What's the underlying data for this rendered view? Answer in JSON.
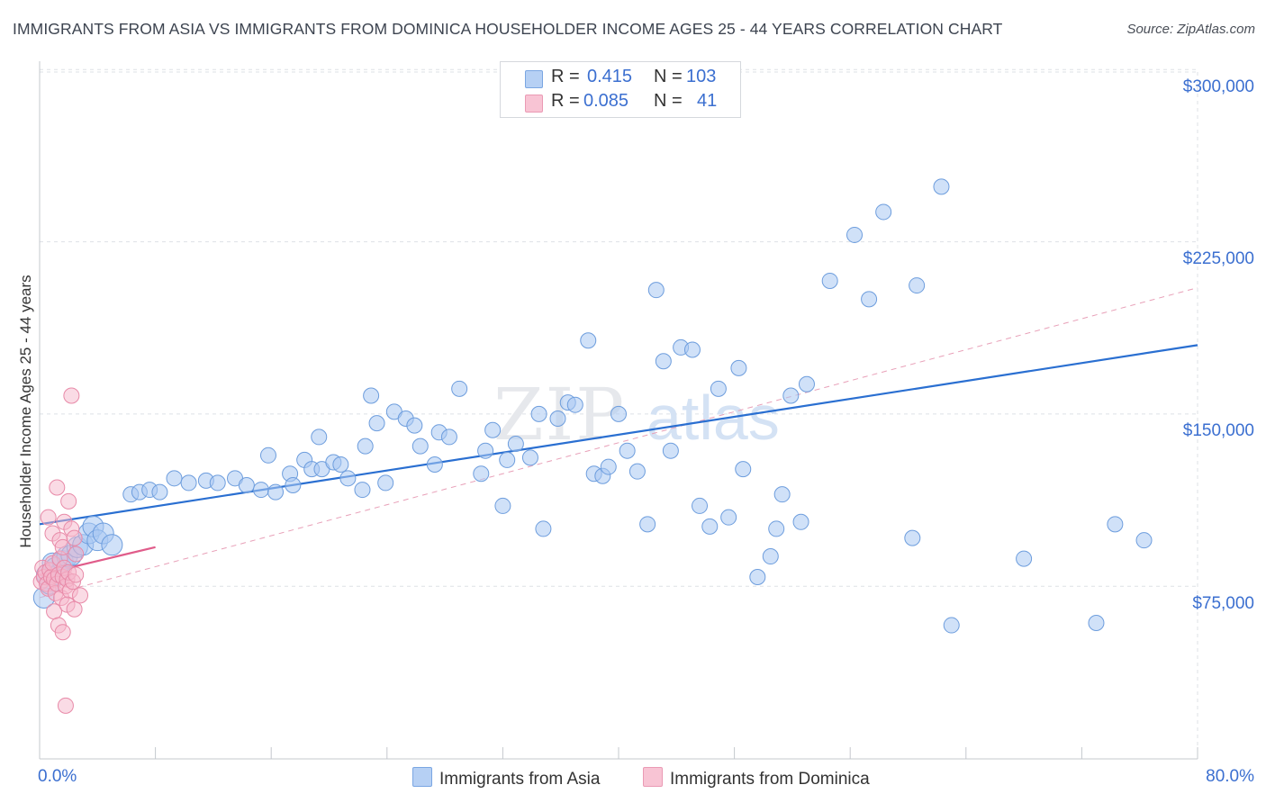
{
  "title": "IMMIGRANTS FROM ASIA VS IMMIGRANTS FROM DOMINICA HOUSEHOLDER INCOME AGES 25 - 44 YEARS CORRELATION CHART",
  "source": "Source: ZipAtlas.com",
  "watermark": {
    "zip": "ZIP",
    "atlas": "atlas"
  },
  "legend": {
    "rows": [
      {
        "r_label": "R =",
        "r_value": "0.415",
        "n_label": "N =",
        "n_value": "103"
      },
      {
        "r_label": "R =",
        "r_value": "0.085",
        "n_label": "N =",
        "n_value": "41"
      }
    ]
  },
  "colors": {
    "asia_fill": "#a9c8f2",
    "asia_stroke": "#6d9ddd",
    "asia_line": "#2a6fd1",
    "dominica_fill": "#f6b8cb",
    "dominica_stroke": "#e88aa8",
    "dominica_line": "#e05c8a",
    "grid": "#dde1e6",
    "axis_text": "#3b6fd0"
  },
  "chart_data": {
    "type": "scatter",
    "title": "IMMIGRANTS FROM ASIA VS IMMIGRANTS FROM DOMINICA HOUSEHOLDER INCOME AGES 25 - 44 YEARS CORRELATION CHART",
    "xlabel": "",
    "ylabel": "Householder Income Ages 25 - 44 years",
    "xlim": [
      0,
      80
    ],
    "ylim": [
      0,
      310000
    ],
    "x_tick_labels": [
      "0.0%",
      "80.0%"
    ],
    "y_ticks": [
      75000,
      150000,
      225000,
      300000
    ],
    "y_tick_labels": [
      "$75,000",
      "$150,000",
      "$225,000",
      "$300,000"
    ],
    "grid": true,
    "series": [
      {
        "name": "Immigrants from Asia",
        "R": 0.415,
        "N": 103,
        "trend": {
          "x": [
            0,
            80
          ],
          "y": [
            102000,
            180000
          ],
          "style": "solid"
        },
        "points": [
          {
            "x": 0.3,
            "y": 70000
          },
          {
            "x": 0.5,
            "y": 80000
          },
          {
            "x": 0.7,
            "y": 76000
          },
          {
            "x": 0.9,
            "y": 85000
          },
          {
            "x": 1.1,
            "y": 83000
          },
          {
            "x": 1.3,
            "y": 80000
          },
          {
            "x": 1.6,
            "y": 86000
          },
          {
            "x": 1.9,
            "y": 88000
          },
          {
            "x": 2.2,
            "y": 88500
          },
          {
            "x": 2.6,
            "y": 92000
          },
          {
            "x": 3.0,
            "y": 93000
          },
          {
            "x": 3.4,
            "y": 98000
          },
          {
            "x": 3.7,
            "y": 101000
          },
          {
            "x": 4.0,
            "y": 95000
          },
          {
            "x": 4.4,
            "y": 98000
          },
          {
            "x": 5.0,
            "y": 93000
          },
          {
            "x": 6.3,
            "y": 115000
          },
          {
            "x": 6.9,
            "y": 116000
          },
          {
            "x": 7.6,
            "y": 117000
          },
          {
            "x": 8.3,
            "y": 116000
          },
          {
            "x": 9.3,
            "y": 122000
          },
          {
            "x": 10.3,
            "y": 120000
          },
          {
            "x": 11.5,
            "y": 121000
          },
          {
            "x": 12.3,
            "y": 120000
          },
          {
            "x": 13.5,
            "y": 122000
          },
          {
            "x": 14.3,
            "y": 119000
          },
          {
            "x": 15.3,
            "y": 117000
          },
          {
            "x": 15.8,
            "y": 132000
          },
          {
            "x": 16.3,
            "y": 116000
          },
          {
            "x": 17.3,
            "y": 124000
          },
          {
            "x": 17.5,
            "y": 119000
          },
          {
            "x": 18.3,
            "y": 130000
          },
          {
            "x": 18.8,
            "y": 126000
          },
          {
            "x": 19.3,
            "y": 140000
          },
          {
            "x": 19.5,
            "y": 126000
          },
          {
            "x": 20.3,
            "y": 129000
          },
          {
            "x": 20.8,
            "y": 128000
          },
          {
            "x": 21.3,
            "y": 122000
          },
          {
            "x": 22.3,
            "y": 117000
          },
          {
            "x": 22.5,
            "y": 136000
          },
          {
            "x": 22.9,
            "y": 158000
          },
          {
            "x": 23.3,
            "y": 146000
          },
          {
            "x": 23.9,
            "y": 120000
          },
          {
            "x": 24.5,
            "y": 151000
          },
          {
            "x": 25.3,
            "y": 148000
          },
          {
            "x": 25.9,
            "y": 145000
          },
          {
            "x": 26.3,
            "y": 136000
          },
          {
            "x": 27.3,
            "y": 128000
          },
          {
            "x": 27.6,
            "y": 142000
          },
          {
            "x": 28.3,
            "y": 140000
          },
          {
            "x": 29.0,
            "y": 161000
          },
          {
            "x": 30.5,
            "y": 124000
          },
          {
            "x": 30.8,
            "y": 134000
          },
          {
            "x": 31.3,
            "y": 143000
          },
          {
            "x": 32.0,
            "y": 110000
          },
          {
            "x": 32.3,
            "y": 130000
          },
          {
            "x": 32.9,
            "y": 137000
          },
          {
            "x": 33.9,
            "y": 131000
          },
          {
            "x": 34.5,
            "y": 150000
          },
          {
            "x": 34.8,
            "y": 100000
          },
          {
            "x": 35.8,
            "y": 148000
          },
          {
            "x": 36.5,
            "y": 155000
          },
          {
            "x": 37.0,
            "y": 154000
          },
          {
            "x": 37.9,
            "y": 182000
          },
          {
            "x": 38.3,
            "y": 124000
          },
          {
            "x": 38.9,
            "y": 123000
          },
          {
            "x": 39.3,
            "y": 127000
          },
          {
            "x": 40.0,
            "y": 150000
          },
          {
            "x": 40.6,
            "y": 134000
          },
          {
            "x": 41.3,
            "y": 125000
          },
          {
            "x": 42.0,
            "y": 102000
          },
          {
            "x": 42.6,
            "y": 204000
          },
          {
            "x": 43.1,
            "y": 173000
          },
          {
            "x": 43.6,
            "y": 134000
          },
          {
            "x": 44.3,
            "y": 179000
          },
          {
            "x": 45.1,
            "y": 178000
          },
          {
            "x": 45.6,
            "y": 110000
          },
          {
            "x": 46.3,
            "y": 101000
          },
          {
            "x": 46.9,
            "y": 161000
          },
          {
            "x": 47.6,
            "y": 105000
          },
          {
            "x": 48.3,
            "y": 170000
          },
          {
            "x": 48.6,
            "y": 126000
          },
          {
            "x": 49.6,
            "y": 79000
          },
          {
            "x": 50.5,
            "y": 88000
          },
          {
            "x": 50.9,
            "y": 100000
          },
          {
            "x": 51.3,
            "y": 115000
          },
          {
            "x": 51.9,
            "y": 158000
          },
          {
            "x": 52.6,
            "y": 103000
          },
          {
            "x": 53.0,
            "y": 163000
          },
          {
            "x": 54.6,
            "y": 208000
          },
          {
            "x": 56.3,
            "y": 228000
          },
          {
            "x": 57.3,
            "y": 200000
          },
          {
            "x": 58.3,
            "y": 238000
          },
          {
            "x": 60.3,
            "y": 96000
          },
          {
            "x": 60.6,
            "y": 206000
          },
          {
            "x": 62.3,
            "y": 249000
          },
          {
            "x": 63.0,
            "y": 58000
          },
          {
            "x": 68.0,
            "y": 87000
          },
          {
            "x": 73.0,
            "y": 59000
          },
          {
            "x": 74.3,
            "y": 102000
          },
          {
            "x": 76.3,
            "y": 95000
          }
        ]
      },
      {
        "name": "Immigrants from Dominica",
        "R": 0.085,
        "N": 41,
        "trend": {
          "x": [
            0,
            8
          ],
          "y": [
            80000,
            92000
          ],
          "style": "solid"
        },
        "trend_extended": {
          "x": [
            0,
            80
          ],
          "y": [
            70000,
            205000
          ],
          "style": "dashed"
        },
        "points": [
          {
            "x": 0.1,
            "y": 77000
          },
          {
            "x": 0.2,
            "y": 83000
          },
          {
            "x": 0.3,
            "y": 79000
          },
          {
            "x": 0.4,
            "y": 81000
          },
          {
            "x": 0.5,
            "y": 76000
          },
          {
            "x": 0.6,
            "y": 74000
          },
          {
            "x": 0.7,
            "y": 82000
          },
          {
            "x": 0.8,
            "y": 79000
          },
          {
            "x": 0.9,
            "y": 85000
          },
          {
            "x": 1.0,
            "y": 78000
          },
          {
            "x": 1.1,
            "y": 72000
          },
          {
            "x": 1.2,
            "y": 76000
          },
          {
            "x": 1.3,
            "y": 80000
          },
          {
            "x": 1.4,
            "y": 87000
          },
          {
            "x": 1.5,
            "y": 70000
          },
          {
            "x": 1.6,
            "y": 79000
          },
          {
            "x": 1.7,
            "y": 83000
          },
          {
            "x": 1.8,
            "y": 75000
          },
          {
            "x": 1.9,
            "y": 78000
          },
          {
            "x": 2.0,
            "y": 81000
          },
          {
            "x": 2.1,
            "y": 73000
          },
          {
            "x": 2.3,
            "y": 77000
          },
          {
            "x": 2.5,
            "y": 80000
          },
          {
            "x": 0.6,
            "y": 105000
          },
          {
            "x": 0.9,
            "y": 98000
          },
          {
            "x": 1.2,
            "y": 118000
          },
          {
            "x": 1.4,
            "y": 95000
          },
          {
            "x": 1.6,
            "y": 92000
          },
          {
            "x": 1.7,
            "y": 103000
          },
          {
            "x": 2.0,
            "y": 112000
          },
          {
            "x": 2.2,
            "y": 100000
          },
          {
            "x": 2.4,
            "y": 96000
          },
          {
            "x": 2.5,
            "y": 89000
          },
          {
            "x": 1.0,
            "y": 64000
          },
          {
            "x": 1.3,
            "y": 58000
          },
          {
            "x": 1.6,
            "y": 55000
          },
          {
            "x": 1.9,
            "y": 67000
          },
          {
            "x": 2.4,
            "y": 65000
          },
          {
            "x": 2.8,
            "y": 71000
          },
          {
            "x": 1.8,
            "y": 23000
          },
          {
            "x": 2.2,
            "y": 158000
          }
        ]
      }
    ]
  },
  "bottom_legend": [
    "Immigrants from Asia",
    "Immigrants from Dominica"
  ]
}
